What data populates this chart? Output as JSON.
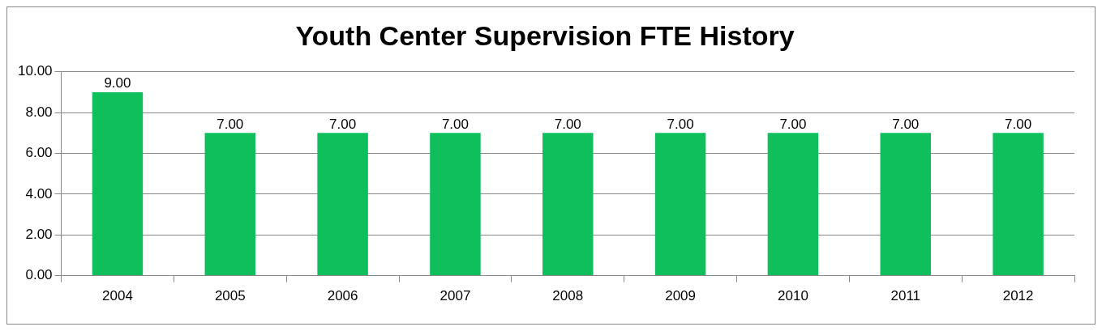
{
  "chart_data": {
    "type": "bar",
    "title": "Youth Center Supervision FTE History",
    "categories": [
      "2004",
      "2005",
      "2006",
      "2007",
      "2008",
      "2009",
      "2010",
      "2011",
      "2012"
    ],
    "values": [
      9,
      7,
      7,
      7,
      7,
      7,
      7,
      7,
      7
    ],
    "value_labels": [
      "9.00",
      "7.00",
      "7.00",
      "7.00",
      "7.00",
      "7.00",
      "7.00",
      "7.00",
      "7.00"
    ],
    "color": "#0fbf5c",
    "ylim": [
      0,
      10
    ],
    "yticks": [
      {
        "value": 0,
        "label": "0.00"
      },
      {
        "value": 2,
        "label": "2.00"
      },
      {
        "value": 4,
        "label": "4.00"
      },
      {
        "value": 6,
        "label": "6.00"
      },
      {
        "value": 8,
        "label": "8.00"
      },
      {
        "value": 10,
        "label": "10.00"
      }
    ],
    "grid": "y",
    "legend": false
  }
}
